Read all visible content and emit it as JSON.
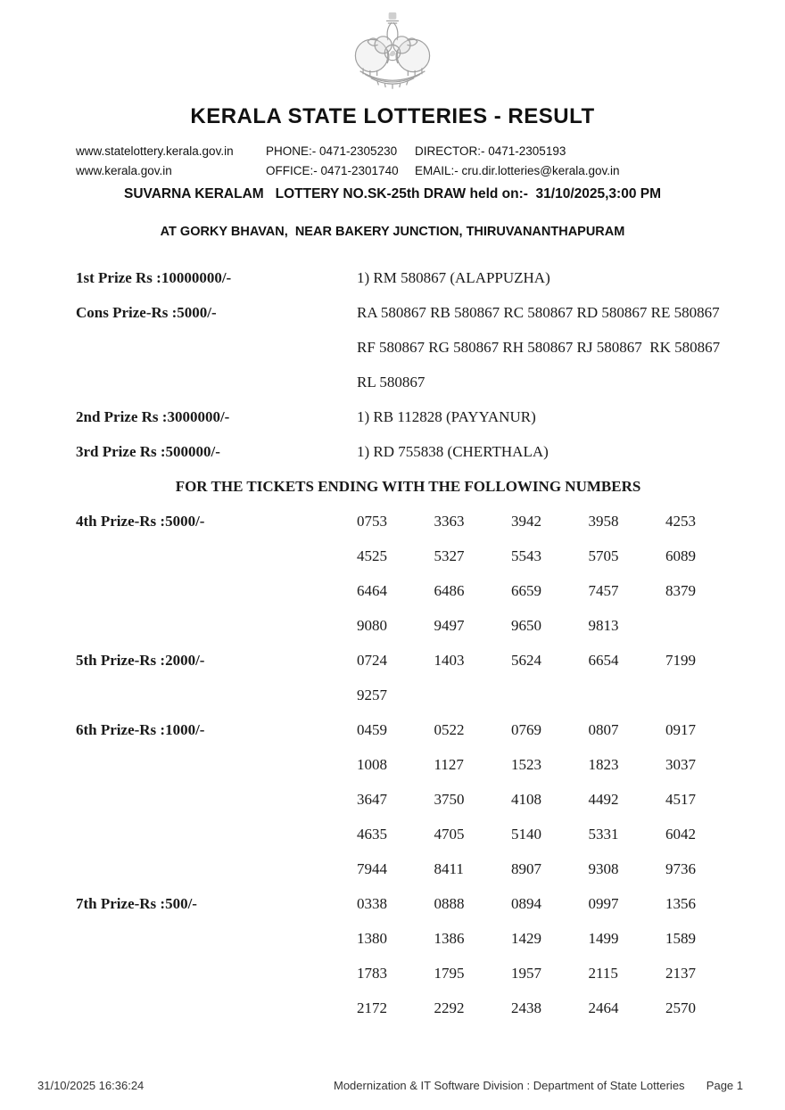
{
  "emblem": {
    "name": "kerala-government-emblem"
  },
  "header": {
    "title": "KERALA STATE LOTTERIES - RESULT",
    "contact_rows": [
      [
        "www.statelottery.kerala.gov.in",
        "PHONE:- 0471-2305230",
        "DIRECTOR:- 0471-2305193"
      ],
      [
        "www.kerala.gov.in",
        "OFFICE:- 0471-2301740",
        "EMAIL:- cru.dir.lotteries@kerala.gov.in"
      ]
    ],
    "draw_line": "SUVARNA KERALAM   LOTTERY NO.SK-25th DRAW held on:-  31/10/2025,3:00 PM",
    "venue_line": "AT GORKY BHAVAN,  NEAR BAKERY JUNCTION, THIRUVANANTHAPURAM"
  },
  "top_prizes": [
    {
      "label": "1st Prize Rs :10000000/-",
      "lines": [
        "1) RM 580867 (ALAPPUZHA)"
      ]
    },
    {
      "label": "Cons Prize-Rs :5000/-",
      "lines": [
        "RA 580867 RB 580867 RC 580867 RD 580867 RE 580867",
        "RF 580867 RG 580867 RH 580867 RJ 580867  RK 580867",
        "RL 580867"
      ]
    },
    {
      "label": "2nd Prize Rs :3000000/-",
      "lines": [
        "1) RB 112828 (PAYYANUR)"
      ]
    },
    {
      "label": "3rd Prize Rs :500000/-",
      "lines": [
        "1) RD 755838 (CHERTHALA)"
      ]
    }
  ],
  "section_heading": "FOR THE TICKETS ENDING WITH THE FOLLOWING NUMBERS",
  "ending_prizes": [
    {
      "label": "4th Prize-Rs :5000/-",
      "numbers": [
        "0753",
        "3363",
        "3942",
        "3958",
        "4253",
        "4525",
        "5327",
        "5543",
        "5705",
        "6089",
        "6464",
        "6486",
        "6659",
        "7457",
        "8379",
        "9080",
        "9497",
        "9650",
        "9813"
      ]
    },
    {
      "label": "5th Prize-Rs :2000/-",
      "numbers": [
        "0724",
        "1403",
        "5624",
        "6654",
        "7199",
        "9257"
      ]
    },
    {
      "label": "6th Prize-Rs :1000/-",
      "numbers": [
        "0459",
        "0522",
        "0769",
        "0807",
        "0917",
        "1008",
        "1127",
        "1523",
        "1823",
        "3037",
        "3647",
        "3750",
        "4108",
        "4492",
        "4517",
        "4635",
        "4705",
        "5140",
        "5331",
        "6042",
        "7944",
        "8411",
        "8907",
        "9308",
        "9736"
      ]
    },
    {
      "label": "7th Prize-Rs :500/-",
      "numbers": [
        "0338",
        "0888",
        "0894",
        "0997",
        "1356",
        "1380",
        "1386",
        "1429",
        "1499",
        "1589",
        "1783",
        "1795",
        "1957",
        "2115",
        "2137",
        "2172",
        "2292",
        "2438",
        "2464",
        "2570"
      ]
    }
  ],
  "footer": {
    "timestamp": "31/10/2025 16:36:24",
    "center": "Modernization & IT Software Division : Department of State Lotteries",
    "page": "Page 1"
  },
  "colors": {
    "text": "#1a1a1a",
    "footer_text": "#333333",
    "emblem": "#909090"
  }
}
